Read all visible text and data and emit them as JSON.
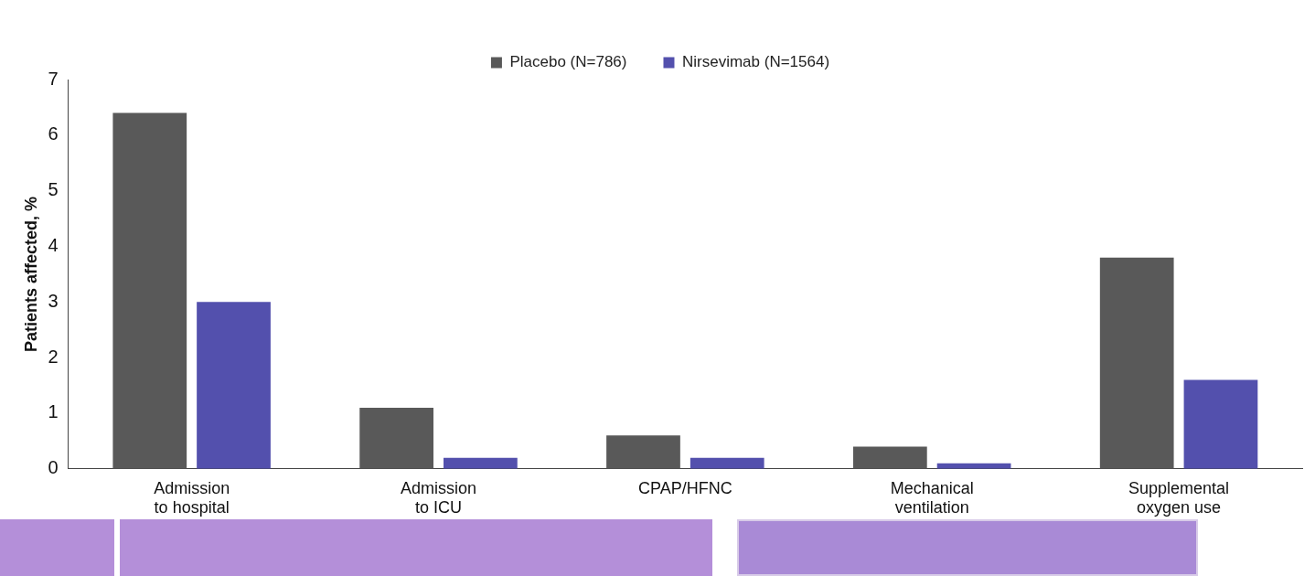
{
  "chart_data": {
    "type": "bar",
    "ylabel": "Patients affected, %",
    "categories": [
      "Admission to hospital",
      "Admission to ICU",
      "CPAP/HFNC",
      "Mechanical ventilation",
      "Supplemental oxygen use"
    ],
    "series": [
      {
        "name": "Placebo (N=786)",
        "color": "#595959",
        "values": [
          6.4,
          1.1,
          0.6,
          0.4,
          3.8
        ]
      },
      {
        "name": "Nirsevimab (N=1564)",
        "color": "#5350ad",
        "values": [
          3.0,
          0.2,
          0.2,
          0.1,
          1.6
        ]
      }
    ],
    "ylim": [
      0,
      7
    ],
    "yticks": [
      0,
      1,
      2,
      3,
      4,
      5,
      6,
      7
    ],
    "grid": false,
    "legend": "top"
  }
}
